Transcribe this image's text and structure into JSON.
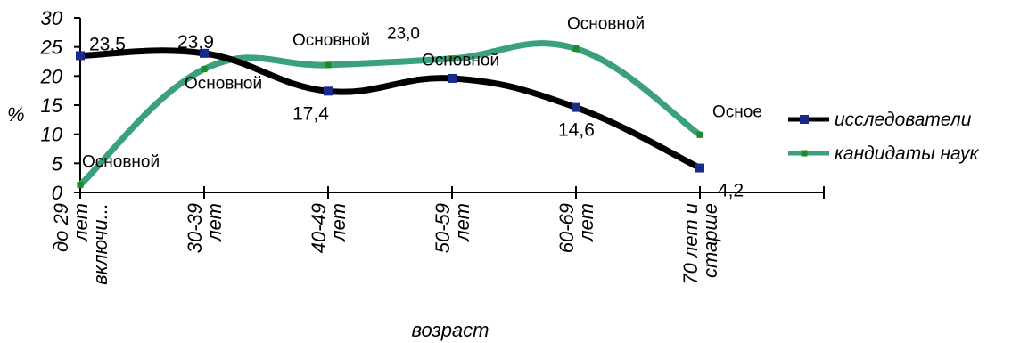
{
  "chart_data": {
    "type": "line",
    "categories": [
      [
        "до 29",
        "лет",
        "включи..."
      ],
      [
        "30-39",
        "лет"
      ],
      [
        "40-49",
        "лет"
      ],
      [
        "50-59",
        "лет"
      ],
      [
        "60-69",
        "лет"
      ],
      [
        "70 лет и",
        "старше"
      ]
    ],
    "series": [
      {
        "name": "исследователи",
        "color": "#000000",
        "marker_color": "#1a2a8c",
        "values": [
          23.5,
          23.9,
          17.4,
          19.6,
          14.6,
          4.2
        ],
        "labels": [
          "23,5",
          "23,9",
          "17,4",
          "",
          "14,6",
          "4,2"
        ]
      },
      {
        "name": "кандидаты наук",
        "color": "#3aa17a",
        "marker_color": "#1e8a2a",
        "values": [
          1.3,
          21.2,
          21.9,
          23.0,
          24.7,
          9.9
        ],
        "labels": [
          "Основной",
          "Основной",
          "Основной",
          "23,0",
          "Основной",
          "Осное"
        ],
        "extra_labels": [
          "",
          "",
          "",
          "Основной",
          "",
          ""
        ]
      }
    ],
    "ylabel": "%",
    "xlabel": "возраст",
    "ylim": [
      0,
      30
    ],
    "yticks": [
      0,
      5,
      10,
      15,
      20,
      25,
      30
    ],
    "legend": "right"
  }
}
